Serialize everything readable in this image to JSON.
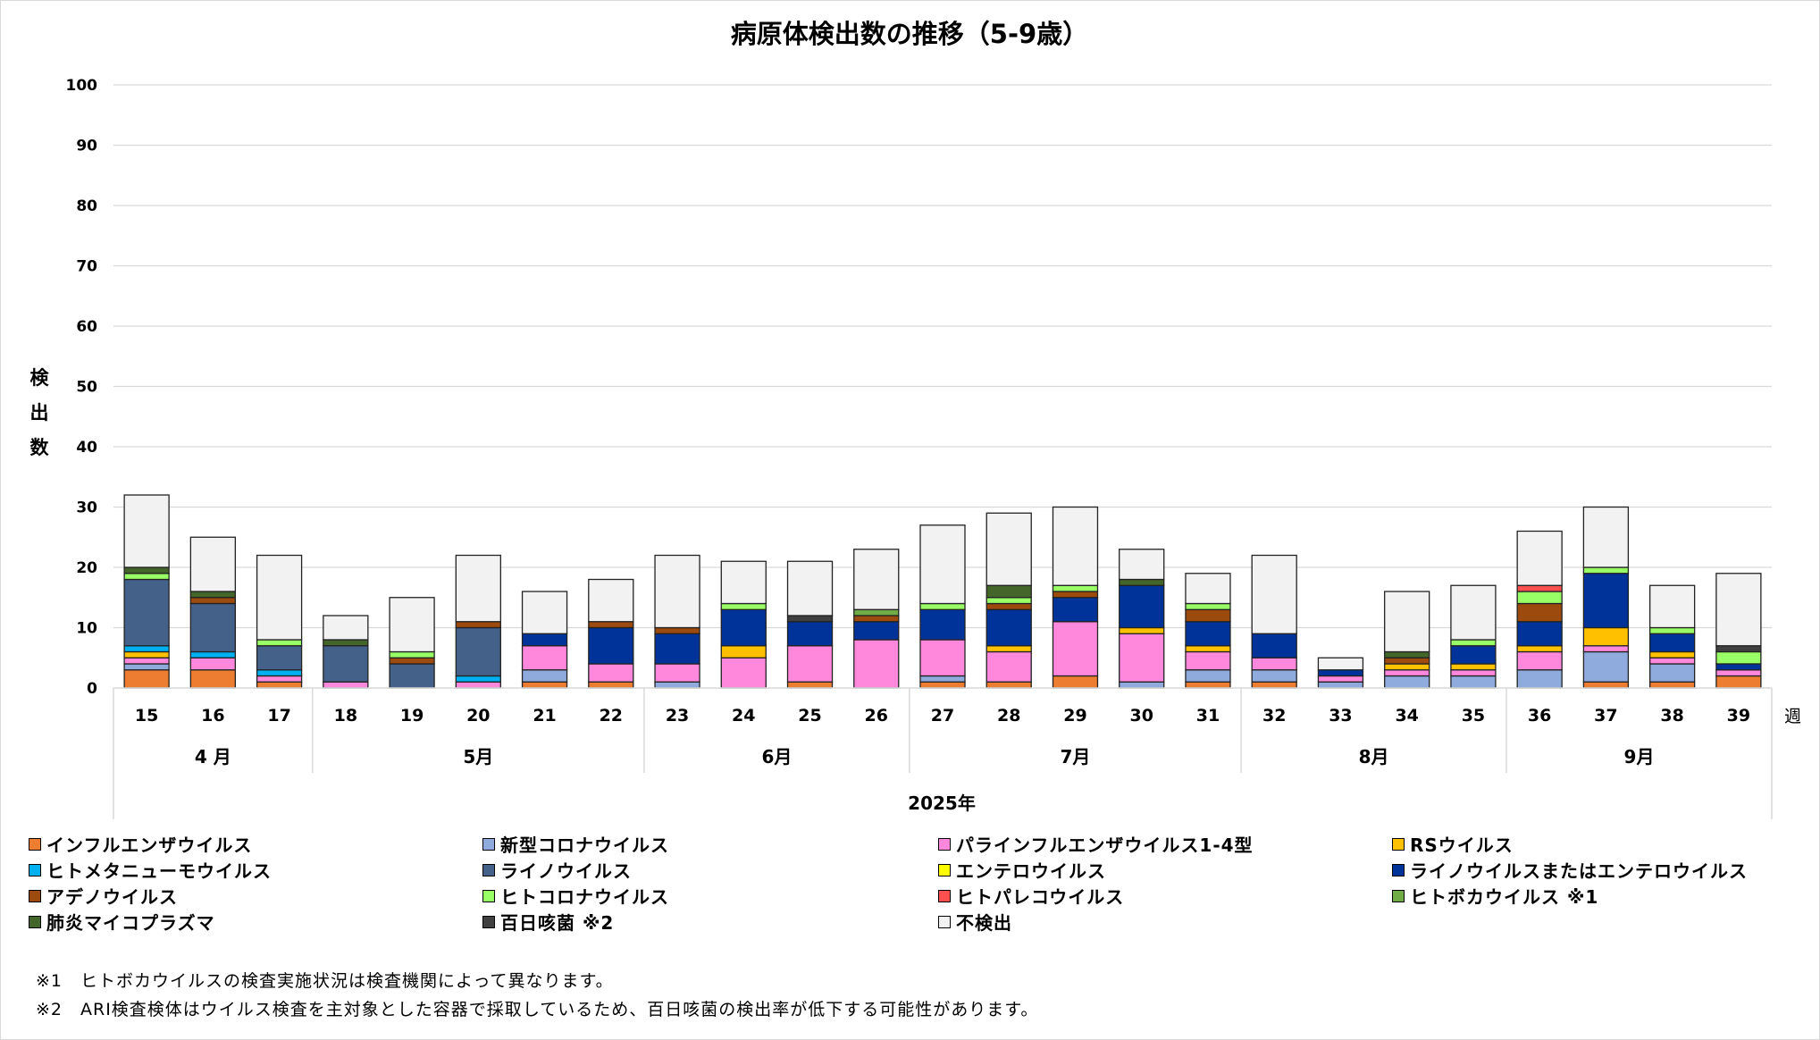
{
  "chart_data": {
    "type": "bar",
    "stacked": true,
    "title": "病原体検出数の推移（5-9歳）",
    "ylabel": "検出数",
    "xlabel": "2025年",
    "x_unit": "週",
    "ylim": [
      0,
      100
    ],
    "yticks": [
      0,
      10,
      20,
      30,
      40,
      50,
      60,
      70,
      80,
      90,
      100
    ],
    "grid": true,
    "legend_position": "bottom",
    "categories": [
      "15",
      "16",
      "17",
      "18",
      "19",
      "20",
      "21",
      "22",
      "23",
      "24",
      "25",
      "26",
      "27",
      "28",
      "29",
      "30",
      "31",
      "32",
      "33",
      "34",
      "35",
      "36",
      "37",
      "38",
      "39"
    ],
    "months": [
      {
        "label": "4 月",
        "weeks": 3
      },
      {
        "label": "5月",
        "weeks": 5
      },
      {
        "label": "6月",
        "weeks": 4
      },
      {
        "label": "7月",
        "weeks": 5
      },
      {
        "label": "8月",
        "weeks": 4
      },
      {
        "label": "9月",
        "weeks": 4
      }
    ],
    "series": [
      {
        "name": "インフルエンザウイルス",
        "color": "#ED7D31",
        "values": [
          3,
          3,
          1,
          0,
          0,
          0,
          1,
          1,
          0,
          0,
          1,
          0,
          1,
          1,
          2,
          0,
          1,
          1,
          0,
          0,
          0,
          0,
          1,
          1,
          2
        ]
      },
      {
        "name": "新型コロナウイルス",
        "color": "#8FAADC",
        "values": [
          1,
          0,
          0,
          0,
          0,
          0,
          2,
          0,
          1,
          0,
          0,
          0,
          1,
          0,
          0,
          1,
          2,
          2,
          1,
          2,
          2,
          3,
          5,
          3,
          0
        ]
      },
      {
        "name": "パラインフルエンザウイルス1-4型",
        "color": "#FF88DD",
        "values": [
          1,
          2,
          1,
          1,
          0,
          1,
          4,
          3,
          3,
          5,
          6,
          8,
          6,
          5,
          9,
          8,
          3,
          2,
          1,
          1,
          1,
          3,
          1,
          1,
          1
        ]
      },
      {
        "name": "RSウイルス",
        "color": "#FFC000",
        "values": [
          1,
          0,
          0,
          0,
          0,
          0,
          0,
          0,
          0,
          2,
          0,
          0,
          0,
          1,
          0,
          1,
          1,
          0,
          0,
          1,
          1,
          1,
          3,
          1,
          0
        ]
      },
      {
        "name": "ヒトメタニューモウイルス",
        "color": "#00B0F0",
        "values": [
          1,
          1,
          1,
          0,
          0,
          1,
          0,
          0,
          0,
          0,
          0,
          0,
          0,
          0,
          0,
          0,
          0,
          0,
          0,
          0,
          0,
          0,
          0,
          0,
          0
        ]
      },
      {
        "name": "ライノウイルス",
        "color": "#44618A",
        "values": [
          11,
          8,
          4,
          6,
          4,
          8,
          0,
          0,
          0,
          0,
          0,
          0,
          0,
          0,
          0,
          0,
          0,
          0,
          0,
          0,
          0,
          0,
          0,
          0,
          0
        ]
      },
      {
        "name": "エンテロウイルス",
        "color": "#FFFF00",
        "values": [
          0,
          0,
          0,
          0,
          0,
          0,
          0,
          0,
          0,
          0,
          0,
          0,
          0,
          0,
          0,
          0,
          0,
          0,
          0,
          0,
          0,
          0,
          0,
          0,
          0
        ]
      },
      {
        "name": "ライノウイルスまたはエンテロウイルス",
        "color": "#003399",
        "values": [
          0,
          0,
          0,
          0,
          0,
          0,
          2,
          6,
          5,
          6,
          4,
          3,
          5,
          6,
          4,
          7,
          4,
          4,
          1,
          0,
          3,
          4,
          9,
          3,
          1
        ]
      },
      {
        "name": "アデノウイルス",
        "color": "#9C4A0E",
        "values": [
          0,
          1,
          0,
          0,
          1,
          1,
          0,
          1,
          1,
          0,
          0,
          1,
          0,
          1,
          1,
          0,
          2,
          0,
          0,
          1,
          0,
          3,
          0,
          0,
          0
        ]
      },
      {
        "name": "ヒトコロナウイルス",
        "color": "#99FF66",
        "values": [
          1,
          0,
          1,
          0,
          1,
          0,
          0,
          0,
          0,
          1,
          0,
          0,
          1,
          1,
          1,
          0,
          1,
          0,
          0,
          0,
          1,
          2,
          1,
          1,
          2
        ]
      },
      {
        "name": "ヒトパレコウイルス",
        "color": "#FF5050",
        "values": [
          0,
          0,
          0,
          0,
          0,
          0,
          0,
          0,
          0,
          0,
          0,
          0,
          0,
          0,
          0,
          0,
          0,
          0,
          0,
          0,
          0,
          1,
          0,
          0,
          0
        ]
      },
      {
        "name": "ヒトボカウイルス ※1",
        "color": "#70AD47",
        "values": [
          0,
          0,
          0,
          0,
          0,
          0,
          0,
          0,
          0,
          0,
          0,
          1,
          0,
          0,
          0,
          0,
          0,
          0,
          0,
          0,
          0,
          0,
          0,
          0,
          0
        ]
      },
      {
        "name": "肺炎マイコプラズマ",
        "color": "#44662A",
        "values": [
          1,
          1,
          0,
          1,
          0,
          0,
          0,
          0,
          0,
          0,
          0,
          0,
          0,
          2,
          0,
          1,
          0,
          0,
          0,
          1,
          0,
          0,
          0,
          0,
          0
        ]
      },
      {
        "name": "百日咳菌 ※2",
        "color": "#404040",
        "values": [
          0,
          0,
          0,
          0,
          0,
          0,
          0,
          0,
          0,
          0,
          1,
          0,
          0,
          0,
          0,
          0,
          0,
          0,
          0,
          0,
          0,
          0,
          0,
          0,
          1
        ]
      },
      {
        "name": "不検出",
        "color": "#F2F2F2",
        "values": [
          12,
          9,
          14,
          4,
          9,
          11,
          7,
          7,
          12,
          7,
          9,
          10,
          13,
          12,
          13,
          5,
          5,
          13,
          2,
          10,
          9,
          9,
          10,
          7,
          12
        ]
      }
    ]
  },
  "footnotes": [
    "※1　ヒトボカウイルスの検査実施状況は検査機関によって異なります。",
    "※2　ARI検査検体はウイルス検査を主対象とした容器で採取しているため、百日咳菌の検出率が低下する可能性があります。"
  ]
}
